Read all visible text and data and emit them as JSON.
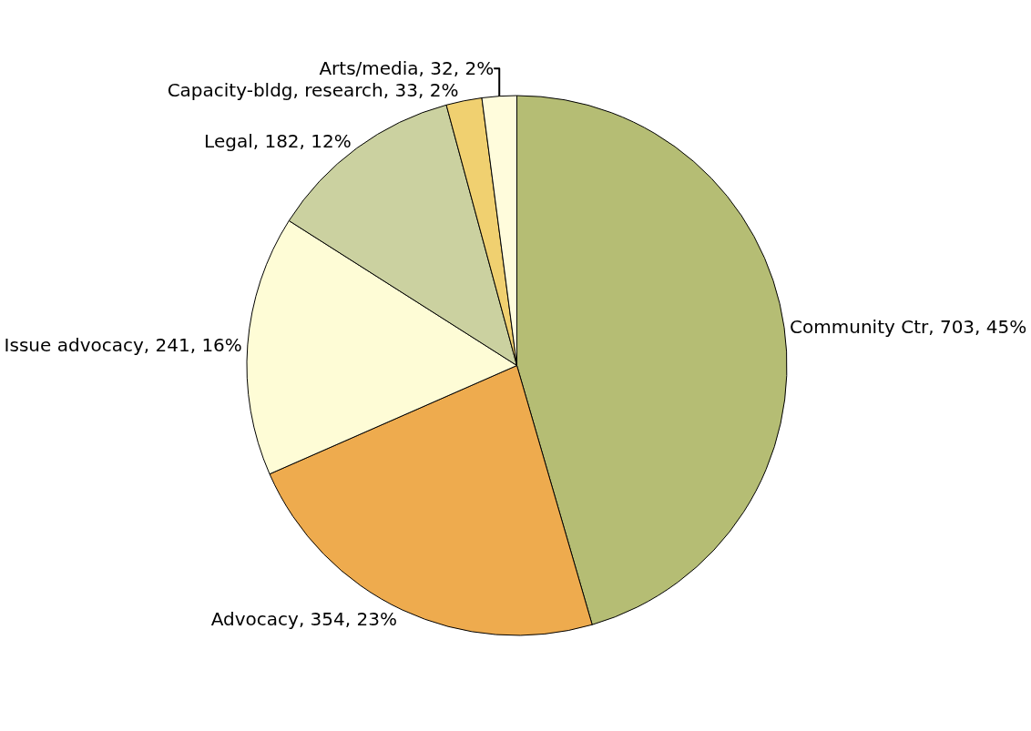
{
  "chart_data": {
    "type": "pie",
    "categories": [
      "Community Ctr",
      "Advocacy",
      "Issue advocacy",
      "Legal",
      "Capacity-bldg, research",
      "Arts/media"
    ],
    "values": [
      703,
      354,
      241,
      182,
      33,
      32
    ],
    "value_labels": [
      "703, 45%",
      "354, 23%",
      "241, 16%",
      "182, 12%",
      "33, 2%",
      "32, 2%"
    ],
    "colors": [
      "#b5bd74",
      "#eeab4e",
      "#fefcd6",
      "#cbd1a0",
      "#f0d070",
      "#fffcdc"
    ],
    "legend": false
  }
}
